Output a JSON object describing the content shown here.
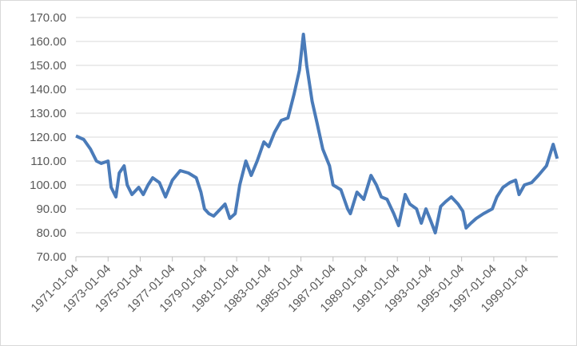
{
  "chart_data": {
    "type": "line",
    "x": [
      "1971-01-04",
      "1971-07-01",
      "1971-12-01",
      "1972-04-15",
      "1972-08-01",
      "1973-01-04",
      "1973-03-15",
      "1973-07-01",
      "1973-09-15",
      "1974-01-04",
      "1974-03-15",
      "1974-07-01",
      "1974-12-01",
      "1975-03-15",
      "1975-07-01",
      "1975-10-15",
      "1976-03-15",
      "1976-08-01",
      "1977-01-04",
      "1977-07-01",
      "1978-01-04",
      "1978-07-01",
      "1978-10-15",
      "1979-01-04",
      "1979-04-15",
      "1979-08-01",
      "1980-01-04",
      "1980-04-15",
      "1980-08-01",
      "1980-12-01",
      "1981-03-15",
      "1981-08-01",
      "1981-12-01",
      "1982-04-15",
      "1982-09-15",
      "1983-01-04",
      "1983-05-15",
      "1983-10-15",
      "1984-03-15",
      "1984-08-01",
      "1984-12-01",
      "1985-03-01",
      "1985-05-15",
      "1985-09-15",
      "1986-01-04",
      "1986-05-15",
      "1986-10-15",
      "1987-01-04",
      "1987-07-01",
      "1987-12-01",
      "1988-02-01",
      "1988-07-01",
      "1988-12-01",
      "1989-05-15",
      "1989-09-15",
      "1990-01-04",
      "1990-05-15",
      "1990-10-15",
      "1991-02-01",
      "1991-07-01",
      "1991-10-15",
      "1992-03-15",
      "1992-07-01",
      "1992-10-15",
      "1993-02-01",
      "1993-05-15",
      "1993-09-15",
      "1994-01-04",
      "1994-05-15",
      "1994-10-15",
      "1995-02-01",
      "1995-04-15",
      "1995-08-01",
      "1995-12-01",
      "1996-05-15",
      "1996-12-01",
      "1997-03-15",
      "1997-08-01",
      "1998-01-04",
      "1998-05-15",
      "1998-08-01",
      "1998-12-01",
      "1999-05-15",
      "1999-10-15",
      "2000-04-15",
      "2000-09-15",
      "2000-12-15"
    ],
    "series": [
      {
        "color": "#4a7bb9",
        "values": [
          120.5,
          119,
          115,
          110,
          109,
          110,
          99,
          95,
          105,
          108,
          100,
          96,
          99,
          96,
          100,
          103,
          101,
          95,
          102,
          106,
          105,
          103,
          97,
          90,
          88,
          87,
          90,
          92,
          86,
          88,
          100,
          110,
          104,
          110,
          118,
          116,
          122,
          127,
          128,
          138,
          148,
          163,
          150,
          135,
          126,
          115,
          108,
          100,
          98,
          90,
          88,
          97,
          94,
          104,
          100,
          95,
          94,
          88,
          83,
          96,
          92,
          90,
          84,
          90,
          85,
          80,
          91,
          93,
          95,
          92,
          89,
          82,
          84,
          86,
          88,
          90,
          95,
          99,
          101,
          102,
          96,
          100,
          101,
          104,
          108,
          117,
          111
        ]
      }
    ],
    "xlim": [
      "1971-01-04",
      "2000-12-29"
    ],
    "xticks": [
      "1971-01-04",
      "1973-01-04",
      "1975-01-04",
      "1977-01-04",
      "1979-01-04",
      "1981-01-04",
      "1983-01-04",
      "1985-01-04",
      "1987-01-04",
      "1989-01-04",
      "1991-01-04",
      "1993-01-04",
      "1995-01-04",
      "1997-01-04",
      "1999-01-04"
    ],
    "ylim": [
      70,
      170
    ],
    "yticks": [
      {
        "value": 70,
        "label": "70.00"
      },
      {
        "value": 80,
        "label": "80.00"
      },
      {
        "value": 90,
        "label": "90.00"
      },
      {
        "value": 100,
        "label": "100.00"
      },
      {
        "value": 110,
        "label": "110.00"
      },
      {
        "value": 120,
        "label": "120.00"
      },
      {
        "value": 130,
        "label": "130.00"
      },
      {
        "value": 140,
        "label": "140.00"
      },
      {
        "value": 150,
        "label": "150.00"
      },
      {
        "value": 160,
        "label": "160.00"
      },
      {
        "value": 170,
        "label": "170.00"
      }
    ],
    "grid": true
  }
}
